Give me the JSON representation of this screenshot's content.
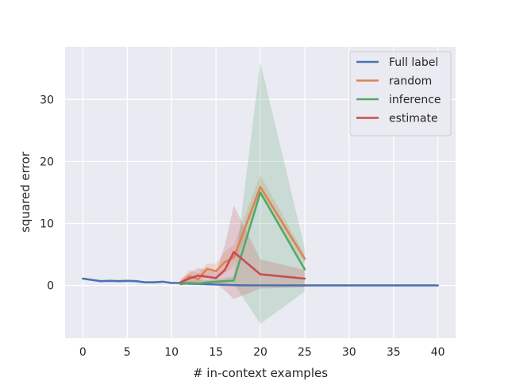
{
  "chart_data": {
    "type": "line",
    "title": "",
    "xlabel": "# in-context examples",
    "ylabel": "squared error",
    "xlim": [
      -2,
      42
    ],
    "ylim": [
      -8.5,
      38.5
    ],
    "xticks": [
      0,
      5,
      10,
      15,
      20,
      25,
      30,
      35,
      40
    ],
    "yticks": [
      0,
      10,
      20,
      30
    ],
    "xtick_labels": [
      "0",
      "5",
      "10",
      "15",
      "20",
      "25",
      "30",
      "35",
      "40"
    ],
    "ytick_labels": [
      "0",
      "10",
      "20",
      "30"
    ],
    "grid": true,
    "legend_position": "top-right",
    "background": "#eaeaf2",
    "series": [
      {
        "name": "Full label",
        "color": "#4c72b0",
        "x": [
          0,
          1,
          2,
          3,
          4,
          5,
          6,
          7,
          8,
          9,
          10,
          11,
          12,
          13,
          14,
          15,
          16,
          17,
          18,
          19,
          20,
          21,
          22,
          23,
          24,
          25,
          26,
          27,
          28,
          29,
          30,
          31,
          32,
          33,
          34,
          35,
          36,
          37,
          38,
          39,
          40
        ],
        "y": [
          1.1,
          0.9,
          0.7,
          0.75,
          0.7,
          0.75,
          0.7,
          0.5,
          0.5,
          0.6,
          0.4,
          0.4,
          0.3,
          0.25,
          0.2,
          0.15,
          0.1,
          0.05,
          0.03,
          0.02,
          0.01,
          0.01,
          0,
          0,
          0,
          0,
          0,
          0,
          0,
          0,
          0,
          0,
          0,
          0,
          0,
          0,
          0,
          0,
          0,
          0,
          0
        ],
        "lower": [],
        "upper": []
      },
      {
        "name": "random",
        "color": "#dd8452",
        "x": [
          11,
          12,
          13,
          14,
          15,
          16,
          17,
          20,
          25
        ],
        "y": [
          0.3,
          1.5,
          1.0,
          2.7,
          2.3,
          3.8,
          4.5,
          15.9,
          4.3
        ],
        "lower": [
          0.1,
          0.5,
          0.3,
          1.5,
          1.0,
          2.0,
          3.0,
          14.5,
          3.5
        ],
        "upper": [
          0.8,
          2.5,
          2.0,
          3.5,
          3.5,
          5.5,
          6.5,
          17.8,
          5.0
        ]
      },
      {
        "name": "inference",
        "color": "#55a868",
        "x": [
          11,
          12,
          13,
          14,
          15,
          16,
          17,
          20,
          25
        ],
        "y": [
          0.2,
          0.4,
          0.3,
          0.5,
          0.6,
          0.7,
          0.8,
          15.0,
          2.6
        ],
        "lower": [
          0.05,
          0.1,
          0.1,
          0.2,
          0.2,
          0.3,
          0.3,
          -6.2,
          -1.0
        ],
        "upper": [
          0.5,
          0.8,
          0.8,
          0.9,
          1.0,
          1.2,
          1.5,
          36.0,
          6.0
        ]
      },
      {
        "name": "estimate",
        "color": "#c44e52",
        "x": [
          11,
          12,
          13,
          14,
          15,
          16,
          17,
          20,
          25
        ],
        "y": [
          0.5,
          1.1,
          1.6,
          1.4,
          1.2,
          2.5,
          5.4,
          1.8,
          1.1
        ],
        "lower": [
          0.2,
          0.3,
          0.5,
          0.4,
          0.3,
          -0.8,
          -2.2,
          -0.5,
          -0.3
        ],
        "upper": [
          1.0,
          2.0,
          2.8,
          2.5,
          2.0,
          6.5,
          12.9,
          4.2,
          2.5
        ]
      }
    ]
  }
}
